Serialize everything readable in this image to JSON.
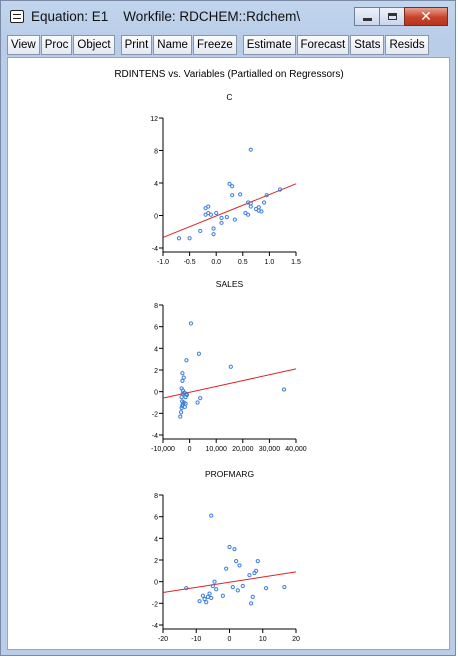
{
  "window": {
    "title": "Equation: E1    Workfile: RDCHEM::Rdchem\\",
    "menu_icon": "window-menu-icon",
    "controls": [
      "minimize-icon",
      "maximize-icon",
      "close-icon"
    ]
  },
  "toolbar": {
    "left": [
      "View",
      "Proc",
      "Object"
    ],
    "middle": [
      "Print",
      "Name",
      "Freeze"
    ],
    "right": [
      "Estimate",
      "Forecast",
      "Stats",
      "Resids"
    ]
  },
  "figure": {
    "title": "RDINTENS vs. Variables (Partialled on Regressors)"
  },
  "chart_data": [
    {
      "type": "scatter",
      "title": "C",
      "xlim": [
        -1.0,
        1.5
      ],
      "ylim": [
        -4,
        12
      ],
      "x_ticks": [
        "-1.0",
        "-0.5",
        "0.0",
        "0.5",
        "1.0",
        "1.5"
      ],
      "y_ticks": [
        "-4",
        "0",
        "4",
        "8",
        "12"
      ],
      "points": [
        [
          -0.7,
          -2.8
        ],
        [
          -0.5,
          -2.8
        ],
        [
          -0.3,
          -1.9
        ],
        [
          -0.2,
          0.9
        ],
        [
          -0.15,
          1.1
        ],
        [
          -0.2,
          0.1
        ],
        [
          -0.15,
          0.3
        ],
        [
          -0.1,
          0.1
        ],
        [
          -0.05,
          -1.6
        ],
        [
          -0.05,
          -2.3
        ],
        [
          0.0,
          0.3
        ],
        [
          0.1,
          -0.3
        ],
        [
          0.1,
          -0.9
        ],
        [
          0.2,
          -0.2
        ],
        [
          0.25,
          3.9
        ],
        [
          0.3,
          3.6
        ],
        [
          0.3,
          2.5
        ],
        [
          0.35,
          -0.5
        ],
        [
          0.45,
          2.6
        ],
        [
          0.55,
          0.3
        ],
        [
          0.6,
          0.1
        ],
        [
          0.6,
          1.6
        ],
        [
          0.65,
          1.5
        ],
        [
          0.65,
          1.1
        ],
        [
          0.65,
          8.1
        ],
        [
          0.75,
          0.8
        ],
        [
          0.8,
          1.0
        ],
        [
          0.8,
          0.6
        ],
        [
          0.85,
          0.5
        ],
        [
          0.9,
          1.6
        ],
        [
          0.95,
          2.5
        ],
        [
          1.2,
          3.2
        ]
      ],
      "fit_line": {
        "x": [
          -1.0,
          1.5
        ],
        "y": [
          -2.7,
          3.9
        ]
      },
      "colors": {
        "points": "#3b7ddd",
        "fit": "#dd2222"
      }
    },
    {
      "type": "scatter",
      "title": "SALES",
      "xlim": [
        -10000,
        40000
      ],
      "ylim": [
        -4,
        8
      ],
      "x_ticks": [
        "-10,000",
        "0",
        "10,000",
        "20,000",
        "30,000",
        "40,000"
      ],
      "y_ticks": [
        "-4",
        "-2",
        "0",
        "2",
        "4",
        "6",
        "8"
      ],
      "points": [
        [
          -3500,
          -2.3
        ],
        [
          -3200,
          -1.9
        ],
        [
          -3000,
          -1.5
        ],
        [
          -2800,
          -1.3
        ],
        [
          -2500,
          -1.2
        ],
        [
          -2800,
          -0.9
        ],
        [
          -3000,
          -0.5
        ],
        [
          -2600,
          -0.2
        ],
        [
          -3000,
          0.3
        ],
        [
          -2500,
          0.1
        ],
        [
          -2000,
          -0.1
        ],
        [
          -2200,
          -1.0
        ],
        [
          -1800,
          -1.4
        ],
        [
          -1500,
          -1.1
        ],
        [
          -1200,
          -0.2
        ],
        [
          -1000,
          -0.3
        ],
        [
          -1500,
          -0.5
        ],
        [
          -2700,
          1.0
        ],
        [
          -2700,
          1.7
        ],
        [
          -2200,
          1.3
        ],
        [
          -1200,
          2.9
        ],
        [
          500,
          6.3
        ],
        [
          3500,
          3.5
        ],
        [
          4000,
          -0.6
        ],
        [
          3000,
          -1.0
        ],
        [
          15500,
          2.3
        ],
        [
          35500,
          0.2
        ]
      ],
      "fit_line": {
        "x": [
          -10000,
          40000
        ],
        "y": [
          -0.6,
          2.1
        ]
      },
      "colors": {
        "points": "#3b7ddd",
        "fit": "#dd2222"
      }
    },
    {
      "type": "scatter",
      "title": "PROFMARG",
      "xlim": [
        -20,
        20
      ],
      "ylim": [
        -4,
        8
      ],
      "x_ticks": [
        "-20",
        "-10",
        "0",
        "10",
        "20"
      ],
      "y_ticks": [
        "-4",
        "-2",
        "0",
        "2",
        "4",
        "6",
        "8"
      ],
      "points": [
        [
          -13,
          -0.6
        ],
        [
          -9,
          -1.8
        ],
        [
          -8,
          -1.3
        ],
        [
          -7.5,
          -1.6
        ],
        [
          -7,
          -1.9
        ],
        [
          -6.5,
          -1.4
        ],
        [
          -6,
          -1.1
        ],
        [
          -5.5,
          -1.5
        ],
        [
          -5,
          -0.4
        ],
        [
          -4.5,
          0.0
        ],
        [
          -4,
          -0.7
        ],
        [
          -5.5,
          6.1
        ],
        [
          -2,
          -1.3
        ],
        [
          -1,
          1.2
        ],
        [
          0,
          3.2
        ],
        [
          1,
          -0.5
        ],
        [
          1.5,
          3.0
        ],
        [
          2,
          1.9
        ],
        [
          3,
          1.5
        ],
        [
          2.5,
          -0.8
        ],
        [
          4,
          -0.4
        ],
        [
          6,
          0.6
        ],
        [
          6.5,
          -2.0
        ],
        [
          7,
          -1.4
        ],
        [
          7.5,
          0.8
        ],
        [
          8,
          1.0
        ],
        [
          8.5,
          1.9
        ],
        [
          11,
          -0.6
        ],
        [
          16.5,
          -0.5
        ]
      ],
      "fit_line": {
        "x": [
          -20,
          20
        ],
        "y": [
          -1.0,
          0.9
        ]
      },
      "colors": {
        "points": "#3b7ddd",
        "fit": "#dd2222"
      }
    }
  ]
}
